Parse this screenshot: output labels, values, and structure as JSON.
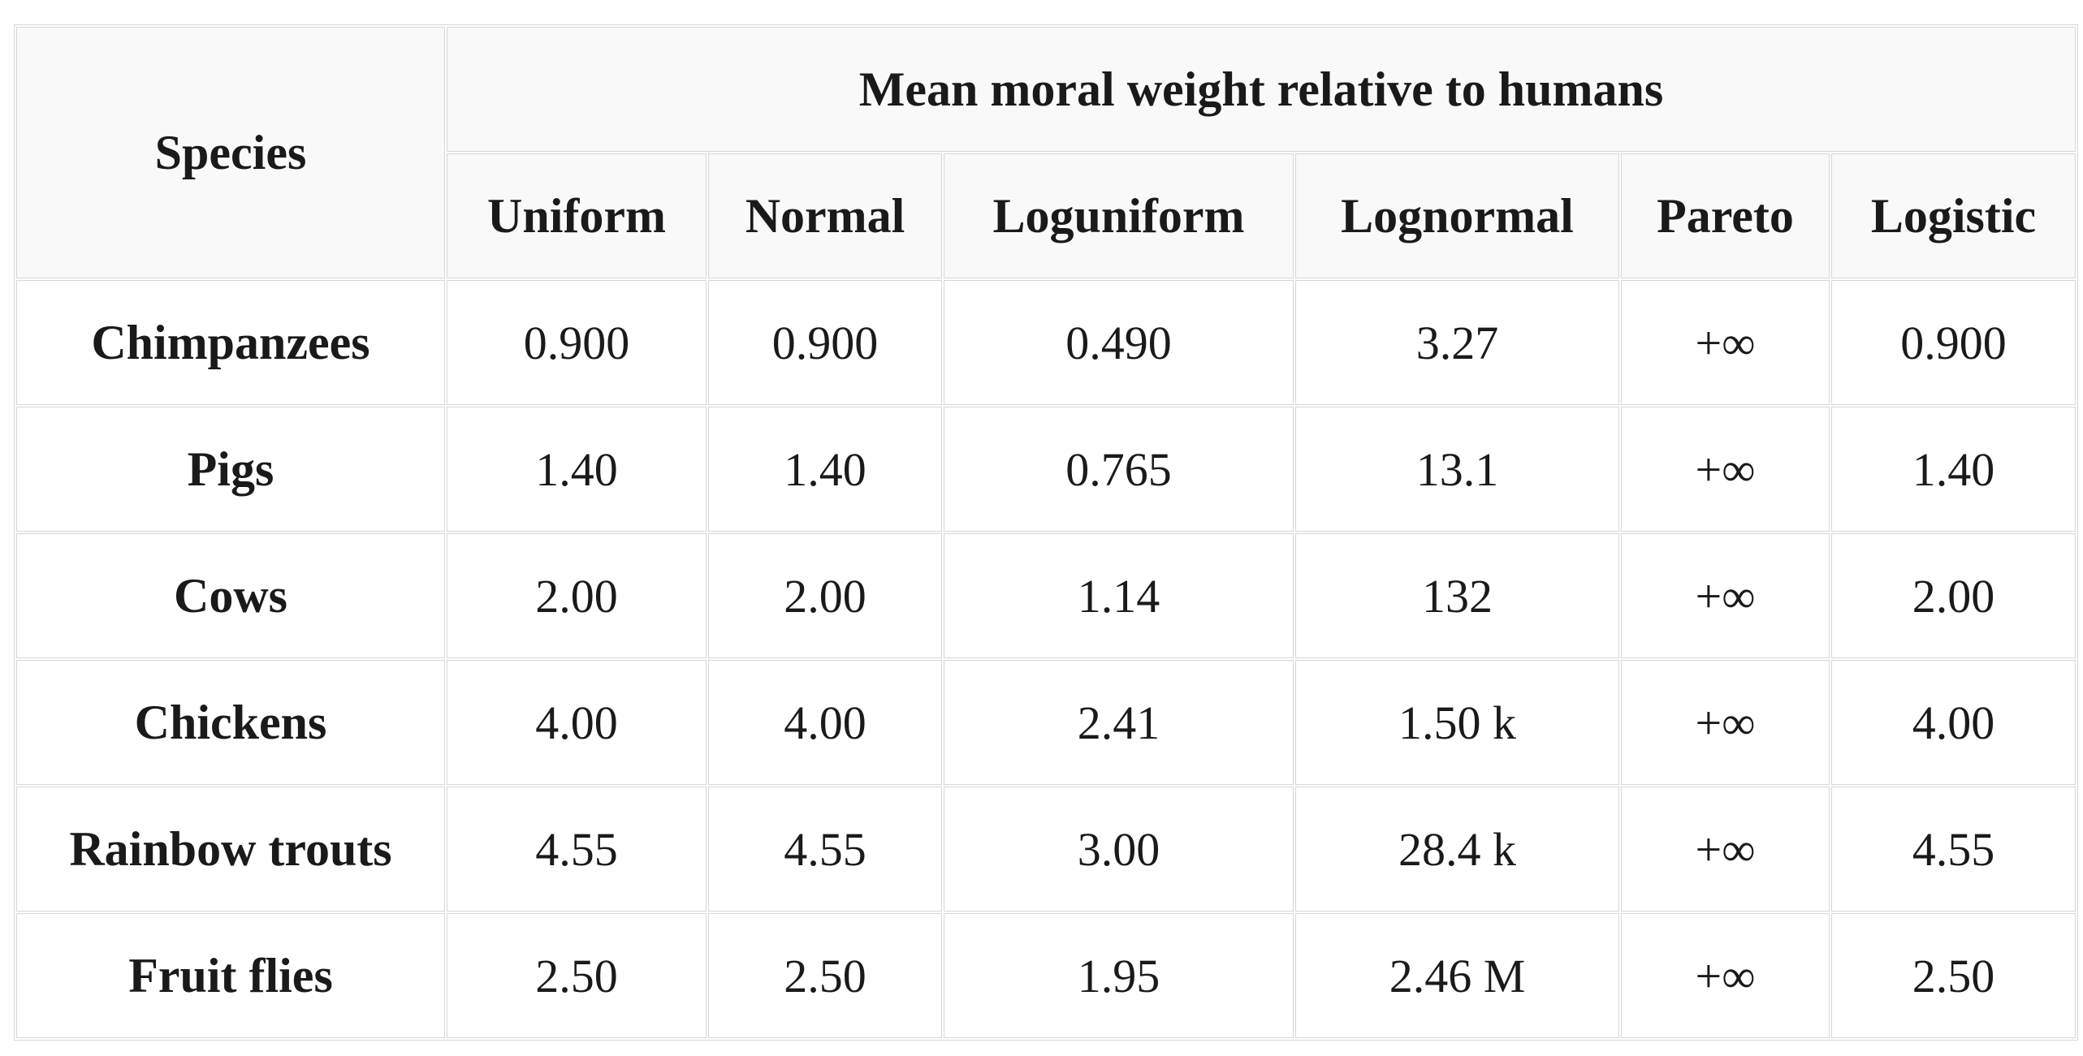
{
  "table": {
    "species_header": "Species",
    "group_header": "Mean moral weight relative to humans",
    "columns": [
      "Uniform",
      "Normal",
      "Loguniform",
      "Lognormal",
      "Pareto",
      "Logistic"
    ],
    "rows": [
      {
        "species": "Chimpanzees",
        "values": [
          "0.900",
          "0.900",
          "0.490",
          "3.27",
          "+∞",
          "0.900"
        ]
      },
      {
        "species": "Pigs",
        "values": [
          "1.40",
          "1.40",
          "0.765",
          "13.1",
          "+∞",
          "1.40"
        ]
      },
      {
        "species": "Cows",
        "values": [
          "2.00",
          "2.00",
          "1.14",
          "132",
          "+∞",
          "2.00"
        ]
      },
      {
        "species": "Chickens",
        "values": [
          "4.00",
          "4.00",
          "2.41",
          "1.50 k",
          "+∞",
          "4.00"
        ]
      },
      {
        "species": "Rainbow trouts",
        "values": [
          "4.55",
          "4.55",
          "3.00",
          "28.4 k",
          "+∞",
          "4.55"
        ]
      },
      {
        "species": "Fruit flies",
        "values": [
          "2.50",
          "2.50",
          "1.95",
          "2.46 M",
          "+∞",
          "2.50"
        ]
      }
    ]
  },
  "colors": {
    "header_background": "#f9f9f9",
    "body_background": "#ffffff",
    "border": "#d6d6d6",
    "text": "#1a1a1a"
  },
  "chart_data": {
    "type": "table",
    "title": "Mean moral weight relative to humans",
    "row_header": "Species",
    "columns": [
      "Uniform",
      "Normal",
      "Loguniform",
      "Lognormal",
      "Pareto",
      "Logistic"
    ],
    "rows": [
      {
        "label": "Chimpanzees",
        "values": [
          "0.900",
          "0.900",
          "0.490",
          "3.27",
          "+∞",
          "0.900"
        ]
      },
      {
        "label": "Pigs",
        "values": [
          "1.40",
          "1.40",
          "0.765",
          "13.1",
          "+∞",
          "1.40"
        ]
      },
      {
        "label": "Cows",
        "values": [
          "2.00",
          "2.00",
          "1.14",
          "132",
          "+∞",
          "2.00"
        ]
      },
      {
        "label": "Chickens",
        "values": [
          "4.00",
          "4.00",
          "2.41",
          "1.50 k",
          "+∞",
          "4.00"
        ]
      },
      {
        "label": "Rainbow trouts",
        "values": [
          "4.55",
          "4.55",
          "3.00",
          "28.4 k",
          "+∞",
          "4.55"
        ]
      },
      {
        "label": "Fruit flies",
        "values": [
          "2.50",
          "2.50",
          "1.95",
          "2.46 M",
          "+∞",
          "2.50"
        ]
      }
    ]
  }
}
